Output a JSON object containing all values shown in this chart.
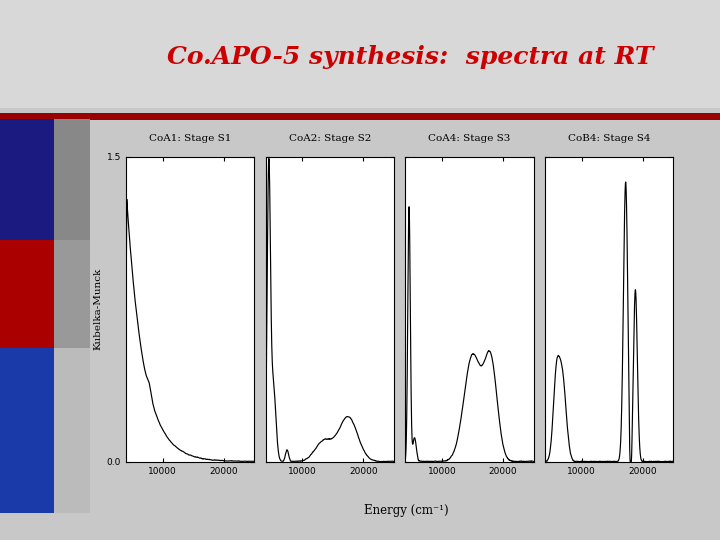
{
  "title": "Co.APO-5 synthesis:  spectra at RT",
  "title_color": "#cc0000",
  "title_fontsize": 18,
  "background_color": "#c8c8c8",
  "title_bg_color": "#d8d8d8",
  "panel_titles": [
    "CoA1: Stage S1",
    "CoA2: Stage S2",
    "CoA4: Stage S3",
    "CoB4: Stage S4"
  ],
  "xlabel": "Energy (cm⁻¹)",
  "ylabel": "Kubelka-Munck",
  "ylim": [
    0.0,
    1.5
  ],
  "ytick_labels": [
    "0.0",
    "1.5"
  ],
  "xticks": [
    10000,
    20000
  ],
  "panel_bg": "#ffffff",
  "left_col1_color": "#1a1a80",
  "left_col2_color": "#606060",
  "red_rect_color": "#aa0000",
  "blue_rect_color": "#1a3aaa",
  "red_line_color": "#990000",
  "separator_color": "#bbbbbb"
}
